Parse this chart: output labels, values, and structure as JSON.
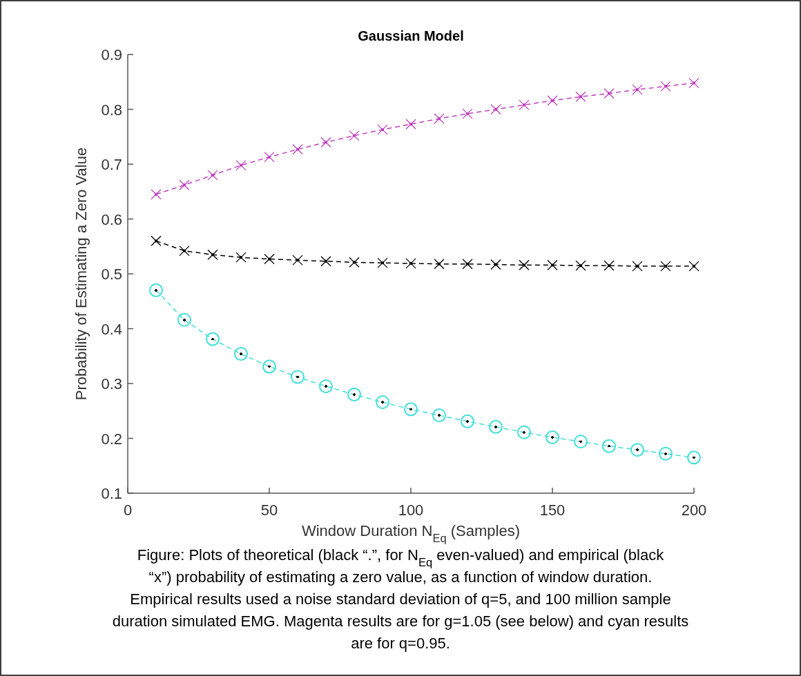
{
  "chart_data": {
    "type": "line",
    "title": "Gaussian Model",
    "xlabel": "Window Duration N$_{Eq}$ (Samples)",
    "ylabel": "Probability of Estimating a Zero Value",
    "x": [
      10,
      20,
      30,
      40,
      50,
      60,
      70,
      80,
      90,
      100,
      110,
      120,
      130,
      140,
      150,
      160,
      170,
      180,
      190,
      200
    ],
    "xlim": [
      0,
      200
    ],
    "xticks": [
      0,
      50,
      100,
      150,
      200
    ],
    "ylim": [
      0.1,
      0.9
    ],
    "yticks": [
      0.1,
      0.2,
      0.3,
      0.4,
      0.5,
      0.6,
      0.7,
      0.8,
      0.9
    ],
    "line_style": "dashed",
    "series": [
      {
        "type": "line",
        "color": "#c040c0",
        "marker": "cross",
        "values": [
          0.645,
          0.662,
          0.68,
          0.698,
          0.713,
          0.727,
          0.74,
          0.752,
          0.763,
          0.773,
          0.783,
          0.792,
          0.8,
          0.808,
          0.816,
          0.823,
          0.829,
          0.836,
          0.842,
          0.848
        ]
      },
      {
        "type": "line",
        "color": "#000000",
        "marker": "cross",
        "values": [
          0.56,
          0.542,
          0.535,
          0.53,
          0.527,
          0.525,
          0.523,
          0.521,
          0.52,
          0.519,
          0.518,
          0.518,
          0.517,
          0.516,
          0.516,
          0.515,
          0.515,
          0.514,
          0.514,
          0.514
        ]
      },
      {
        "color": "#40e0d8",
        "marker": "circle",
        "values": [
          0.47,
          0.416,
          0.381,
          0.354,
          0.331,
          0.312,
          0.295,
          0.28,
          0.266,
          0.253,
          0.242,
          0.231,
          0.221,
          0.211,
          0.202,
          0.194,
          0.186,
          0.179,
          0.172,
          0.165
        ]
      }
    ],
    "annotations": [
      "Figure: Plots of theoretical (black “.”, for N$_{Eq}$ even-valued) and empirical (black “x”) probability of estimating a zero value, as a function of window duration. Empirical results used a noise standard deviation of q=5, and 100 million sample duration simulated EMG. Magenta results are for g=1.05 (see below) and cyan results are for q=0.95."
    ]
  }
}
